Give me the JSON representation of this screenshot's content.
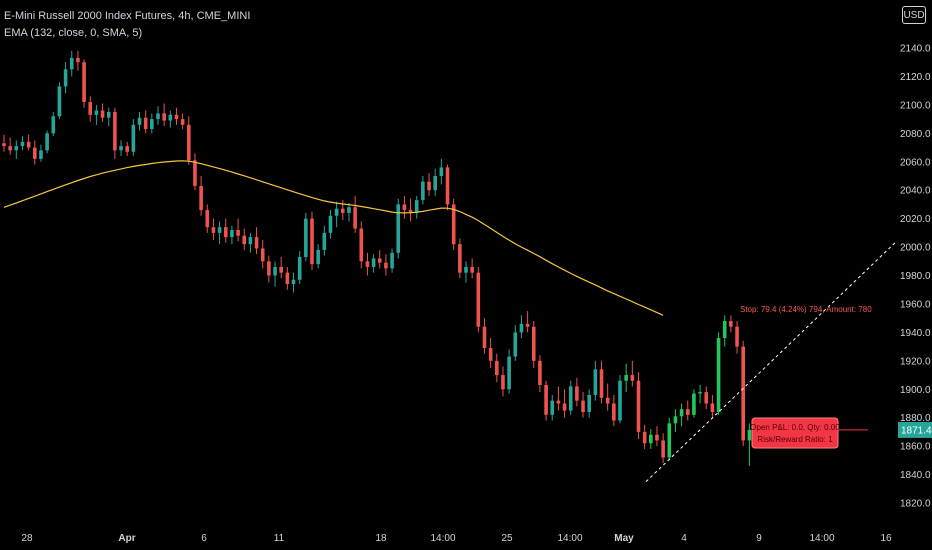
{
  "legend": {
    "title": "E-Mini Russell 2000 Index Futures, 4h, CME_MINI",
    "indicator": "EMA (132, close, 0, SMA, 5)"
  },
  "currency": "USD",
  "colors": {
    "up": "#26a69a",
    "up_bright": "#22c55e",
    "down": "#ef5350",
    "ema": "#f5c542",
    "axis_text": "#d1d4dc",
    "price_badge": "#26a69a",
    "position": "#f23645"
  },
  "price_badge": {
    "value": "1871.4"
  },
  "position_labels": {
    "stop": "Stop: 79.4 (4.24%) 794, Amount: 780",
    "open": "Open P&L: 0.0, Qty: 0.00",
    "ratio": "Risk/Reward Ratio: 1"
  },
  "chart_data": {
    "type": "candlestick",
    "title": "E-Mini Russell 2000 Index Futures, 4h, CME_MINI",
    "y_ticks": [
      1820,
      1840,
      1860,
      1880,
      1900,
      1920,
      1940,
      1960,
      1980,
      2000,
      2020,
      2040,
      2060,
      2080,
      2100,
      2120,
      2140
    ],
    "y_tick_labels": [
      "1820.0",
      "1840.0",
      "1860.0",
      "1880.0",
      "1900.0",
      "1920.0",
      "1940.0",
      "1960.0",
      "1980.0",
      "2000.0",
      "2020.0",
      "2040.0",
      "2060.0",
      "2080.0",
      "2100.0",
      "2120.0",
      "2140.0"
    ],
    "x_labels": [
      "28",
      "Apr",
      "6",
      "11",
      "18",
      "14:00",
      "25",
      "14:00",
      "May",
      "4",
      "9",
      "14:00",
      "16"
    ],
    "ylim": [
      1808,
      2160
    ],
    "last_price": 1871.4,
    "ema_name": "EMA (132, close, 0, SMA, 5)",
    "candles": [
      [
        2073,
        2079,
        2067,
        2071
      ],
      [
        2071,
        2077,
        2065,
        2068
      ],
      [
        2068,
        2075,
        2062,
        2071
      ],
      [
        2071,
        2078,
        2068,
        2074
      ],
      [
        2074,
        2079,
        2068,
        2070
      ],
      [
        2070,
        2075,
        2058,
        2062
      ],
      [
        2062,
        2072,
        2060,
        2068
      ],
      [
        2068,
        2082,
        2066,
        2080
      ],
      [
        2080,
        2095,
        2078,
        2092
      ],
      [
        2092,
        2116,
        2090,
        2113
      ],
      [
        2113,
        2130,
        2108,
        2125
      ],
      [
        2125,
        2138,
        2120,
        2133
      ],
      [
        2133,
        2138,
        2124,
        2130
      ],
      [
        2130,
        2132,
        2098,
        2102
      ],
      [
        2102,
        2106,
        2088,
        2093
      ],
      [
        2093,
        2100,
        2086,
        2096
      ],
      [
        2096,
        2101,
        2088,
        2091
      ],
      [
        2091,
        2098,
        2085,
        2095
      ],
      [
        2095,
        2098,
        2062,
        2068
      ],
      [
        2068,
        2075,
        2064,
        2071
      ],
      [
        2071,
        2074,
        2064,
        2067
      ],
      [
        2067,
        2090,
        2064,
        2086
      ],
      [
        2086,
        2095,
        2082,
        2091
      ],
      [
        2091,
        2096,
        2080,
        2083
      ],
      [
        2083,
        2094,
        2080,
        2090
      ],
      [
        2090,
        2099,
        2086,
        2094
      ],
      [
        2094,
        2101,
        2085,
        2089
      ],
      [
        2089,
        2096,
        2084,
        2093
      ],
      [
        2093,
        2098,
        2086,
        2090
      ],
      [
        2090,
        2094,
        2083,
        2086
      ],
      [
        2086,
        2092,
        2058,
        2061
      ],
      [
        2061,
        2066,
        2040,
        2043
      ],
      [
        2043,
        2050,
        2022,
        2026
      ],
      [
        2026,
        2030,
        2010,
        2014
      ],
      [
        2014,
        2020,
        2005,
        2010
      ],
      [
        2010,
        2018,
        2002,
        2014
      ],
      [
        2014,
        2020,
        2003,
        2007
      ],
      [
        2007,
        2015,
        2002,
        2012
      ],
      [
        2012,
        2020,
        2004,
        2008
      ],
      [
        2008,
        2013,
        1998,
        2002
      ],
      [
        2002,
        2010,
        1996,
        2007
      ],
      [
        2007,
        2014,
        1995,
        1999
      ],
      [
        1999,
        2005,
        1985,
        1990
      ],
      [
        1990,
        1994,
        1975,
        1980
      ],
      [
        1980,
        1990,
        1972,
        1986
      ],
      [
        1986,
        1993,
        1978,
        1982
      ],
      [
        1982,
        1986,
        1970,
        1974
      ],
      [
        1974,
        1982,
        1968,
        1977
      ],
      [
        1977,
        1997,
        1974,
        1993
      ],
      [
        1993,
        2024,
        1990,
        2020
      ],
      [
        2020,
        2025,
        1984,
        1988
      ],
      [
        1988,
        2002,
        1985,
        1998
      ],
      [
        1998,
        2015,
        1994,
        2010
      ],
      [
        2010,
        2026,
        2006,
        2022
      ],
      [
        2022,
        2032,
        2014,
        2027
      ],
      [
        2027,
        2033,
        2019,
        2024
      ],
      [
        2024,
        2031,
        2018,
        2028
      ],
      [
        2028,
        2036,
        2010,
        2013
      ],
      [
        2013,
        2018,
        1985,
        1990
      ],
      [
        1990,
        1996,
        1980,
        1986
      ],
      [
        1986,
        1995,
        1982,
        1992
      ],
      [
        1992,
        1998,
        1985,
        1989
      ],
      [
        1989,
        1995,
        1980,
        1985
      ],
      [
        1985,
        1999,
        1982,
        1996
      ],
      [
        1996,
        2034,
        1992,
        2030
      ],
      [
        2030,
        2036,
        2020,
        2026
      ],
      [
        2026,
        2034,
        2018,
        2024
      ],
      [
        2024,
        2036,
        2020,
        2033
      ],
      [
        2033,
        2050,
        2030,
        2046
      ],
      [
        2046,
        2052,
        2036,
        2040
      ],
      [
        2040,
        2055,
        2036,
        2050
      ],
      [
        2050,
        2062,
        2044,
        2056
      ],
      [
        2056,
        2058,
        2026,
        2030
      ],
      [
        2030,
        2034,
        1998,
        2002
      ],
      [
        2002,
        2006,
        1978,
        1982
      ],
      [
        1982,
        1990,
        1975,
        1986
      ],
      [
        1986,
        1992,
        1978,
        1982
      ],
      [
        1982,
        1986,
        1940,
        1944
      ],
      [
        1944,
        1950,
        1925,
        1929
      ],
      [
        1929,
        1936,
        1915,
        1920
      ],
      [
        1920,
        1925,
        1905,
        1910
      ],
      [
        1910,
        1916,
        1895,
        1900
      ],
      [
        1900,
        1928,
        1897,
        1923
      ],
      [
        1923,
        1945,
        1920,
        1940
      ],
      [
        1940,
        1952,
        1936,
        1946
      ],
      [
        1946,
        1955,
        1940,
        1944
      ],
      [
        1944,
        1948,
        1915,
        1920
      ],
      [
        1920,
        1924,
        1898,
        1903
      ],
      [
        1903,
        1906,
        1878,
        1882
      ],
      [
        1882,
        1896,
        1878,
        1892
      ],
      [
        1892,
        1902,
        1885,
        1890
      ],
      [
        1890,
        1900,
        1880,
        1885
      ],
      [
        1885,
        1906,
        1882,
        1902
      ],
      [
        1902,
        1908,
        1888,
        1892
      ],
      [
        1892,
        1898,
        1880,
        1884
      ],
      [
        1884,
        1900,
        1880,
        1896
      ],
      [
        1896,
        1920,
        1892,
        1914
      ],
      [
        1914,
        1920,
        1890,
        1894
      ],
      [
        1894,
        1904,
        1885,
        1890
      ],
      [
        1890,
        1896,
        1874,
        1878
      ],
      [
        1878,
        1910,
        1876,
        1906
      ],
      [
        1906,
        1918,
        1898,
        1910
      ],
      [
        1910,
        1920,
        1902,
        1906
      ],
      [
        1906,
        1912,
        1865,
        1870
      ],
      [
        1870,
        1875,
        1858,
        1862
      ],
      [
        1862,
        1872,
        1858,
        1868
      ],
      [
        1868,
        1874,
        1860,
        1864
      ],
      [
        1864,
        1869,
        1848,
        1852
      ],
      [
        1852,
        1880,
        1850,
        1876
      ],
      [
        1876,
        1886,
        1870,
        1881
      ],
      [
        1881,
        1890,
        1874,
        1886
      ],
      [
        1886,
        1892,
        1878,
        1882
      ],
      [
        1882,
        1900,
        1880,
        1897
      ],
      [
        1897,
        1903,
        1890,
        1898
      ],
      [
        1898,
        1902,
        1886,
        1890
      ],
      [
        1890,
        1896,
        1880,
        1884
      ],
      [
        1884,
        1940,
        1882,
        1936
      ],
      [
        1936,
        1952,
        1930,
        1948
      ],
      [
        1948,
        1952,
        1940,
        1944
      ],
      [
        1944,
        1948,
        1925,
        1930
      ],
      [
        1930,
        1934,
        1860,
        1864
      ],
      [
        1864,
        1876,
        1846,
        1871.4
      ]
    ],
    "ema_values": [
      2028.0,
      2029.5,
      2031.0,
      2032.6,
      2034.2,
      2035.8,
      2037.4,
      2039.0,
      2040.6,
      2042.2,
      2043.8,
      2045.3,
      2046.8,
      2048.2,
      2049.6,
      2050.8,
      2052.0,
      2053.0,
      2054.0,
      2055.0,
      2055.9,
      2056.7,
      2057.4,
      2058.1,
      2058.8,
      2059.3,
      2059.8,
      2060.2,
      2060.5,
      2060.7,
      2060.4,
      2059.6,
      2058.6,
      2057.5,
      2056.4,
      2055.2,
      2054.0,
      2052.7,
      2051.4,
      2050.1,
      2048.7,
      2047.3,
      2045.9,
      2044.5,
      2043.1,
      2041.7,
      2040.3,
      2038.9,
      2037.5,
      2036.1,
      2034.8,
      2033.6,
      2032.5,
      2031.6,
      2030.9,
      2030.3,
      2029.8,
      2029.2,
      2028.5,
      2027.8,
      2027.0,
      2026.2,
      2025.4,
      2024.6,
      2024.1,
      2024.0,
      2024.2,
      2024.5,
      2025.1,
      2025.9,
      2026.7,
      2027.4,
      2027.3,
      2026.5,
      2025.0,
      2023.0,
      2021.0,
      2018.6,
      2015.9,
      2013.1,
      2010.3,
      2007.5,
      2004.9,
      2002.3,
      2000.0,
      1997.8,
      1995.5,
      1993.2,
      1990.7,
      1988.3,
      1986.0,
      1983.7,
      1981.5,
      1979.4,
      1977.3,
      1975.3,
      1973.4,
      1971.3,
      1969.2,
      1967.3,
      1965.4,
      1963.5,
      1961.6,
      1959.6,
      1957.8,
      1955.9,
      1953.9,
      1952.0
    ]
  }
}
